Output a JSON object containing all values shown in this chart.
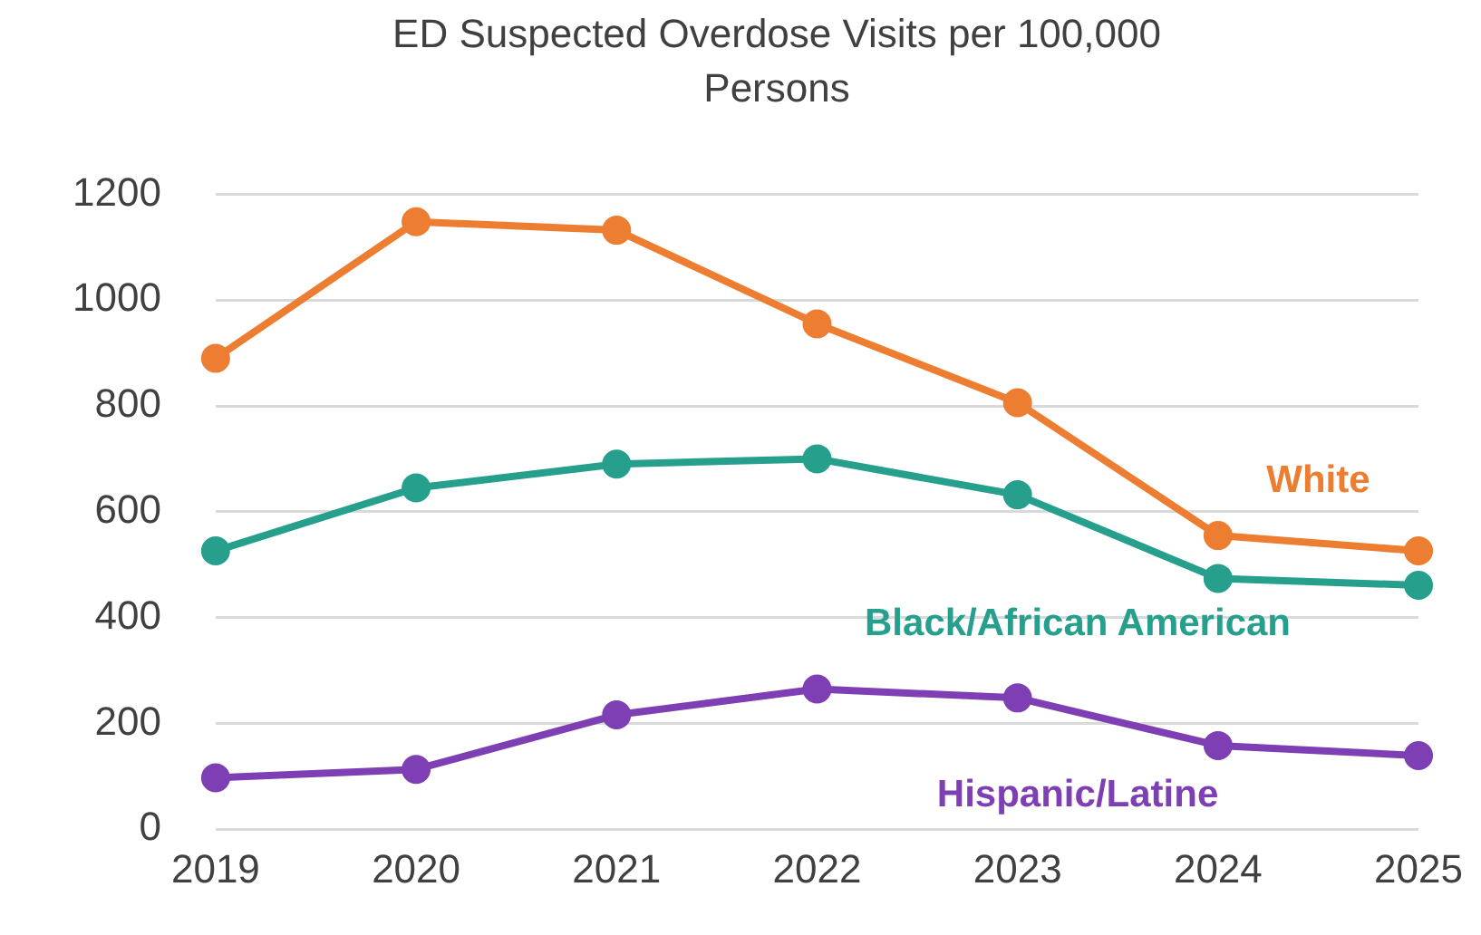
{
  "chart_data": {
    "type": "line",
    "title": "ED Suspected Overdose Visits per 100,000 Persons",
    "categories": [
      "2019",
      "2020",
      "2021",
      "2022",
      "2023",
      "2024",
      "2025"
    ],
    "series": [
      {
        "name": "White",
        "color": "#ed7d31",
        "values": [
          890,
          1148,
          1132,
          955,
          806,
          555,
          526
        ]
      },
      {
        "name": "Black/African American",
        "color": "#26a08c",
        "values": [
          526,
          645,
          690,
          700,
          632,
          474,
          461
        ]
      },
      {
        "name": "Hispanic/Latine",
        "color": "#7e3fb5",
        "values": [
          97,
          113,
          216,
          265,
          248,
          158,
          139
        ]
      }
    ],
    "ylim": [
      0,
      1200
    ],
    "yticks": [
      0,
      200,
      400,
      600,
      800,
      1000,
      1200
    ],
    "grid": "y",
    "legend": false,
    "marker": "circle",
    "line_style": "solid"
  }
}
